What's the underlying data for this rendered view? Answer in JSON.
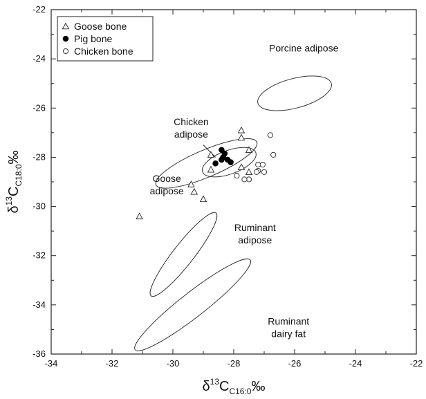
{
  "colors": {
    "axis": "#222222",
    "marker_fill": "#000000",
    "marker_open": "#ffffff",
    "ellipse": "#333333"
  },
  "chart_data": {
    "type": "scatter",
    "xlabel": {
      "prefix": "δ",
      "sup": "13",
      "main": "C",
      "sub": "C16:0",
      "unit": "‰"
    },
    "ylabel": {
      "prefix": "δ",
      "sup": "13",
      "main": "C",
      "sub": "C18:0",
      "unit": "‰"
    },
    "xlim": [
      -34,
      -22
    ],
    "ylim": [
      -36,
      -22
    ],
    "xticks": [
      -34,
      -32,
      -30,
      -28,
      -26,
      -24,
      -22
    ],
    "yticks": [
      -36,
      -34,
      -32,
      -30,
      -28,
      -26,
      -24,
      -22
    ],
    "xtick_labels": [
      "-34",
      "-32",
      "-30",
      "-28",
      "-26",
      "-24",
      "-22"
    ],
    "ytick_labels": [
      "-36",
      "-34",
      "-32",
      "-30",
      "-28",
      "-26",
      "-24",
      "-22"
    ],
    "legend": {
      "position": "top-left",
      "entries": [
        {
          "label": "Goose bone",
          "marker": "triangle-open"
        },
        {
          "label": "Pig bone",
          "marker": "circle-filled"
        },
        {
          "label": "Chicken bone",
          "marker": "circle-open"
        }
      ]
    },
    "series": [
      {
        "name": "Goose bone",
        "marker": "triangle-open",
        "points": [
          [
            -31.1,
            -30.4
          ],
          [
            -29.0,
            -29.7
          ],
          [
            -29.3,
            -29.4
          ],
          [
            -29.4,
            -29.1
          ],
          [
            -28.75,
            -28.5
          ],
          [
            -28.75,
            -27.9
          ],
          [
            -27.75,
            -26.9
          ],
          [
            -27.75,
            -27.2
          ],
          [
            -27.75,
            -28.4
          ],
          [
            -27.5,
            -27.7
          ],
          [
            -27.5,
            -28.6
          ]
        ]
      },
      {
        "name": "Pig bone",
        "marker": "circle-filled",
        "points": [
          [
            -28.4,
            -27.7
          ],
          [
            -28.3,
            -27.85
          ],
          [
            -28.35,
            -28.0
          ],
          [
            -28.2,
            -28.1
          ],
          [
            -28.1,
            -28.2
          ],
          [
            -28.4,
            -28.1
          ],
          [
            -28.6,
            -28.25
          ]
        ]
      },
      {
        "name": "Chicken bone",
        "marker": "circle-open",
        "points": [
          [
            -26.8,
            -27.1
          ],
          [
            -26.7,
            -27.9
          ],
          [
            -27.2,
            -28.3
          ],
          [
            -27.05,
            -28.3
          ],
          [
            -27.2,
            -28.55
          ],
          [
            -27.0,
            -28.6
          ],
          [
            -27.25,
            -28.6
          ],
          [
            -27.5,
            -28.9
          ],
          [
            -27.65,
            -28.9
          ],
          [
            -27.9,
            -28.75
          ]
        ]
      }
    ],
    "regions": [
      {
        "label_lines": [
          "Porcine adipose"
        ],
        "cx": -26.0,
        "cy": -25.4,
        "rx": 1.25,
        "ry": 0.6,
        "angle": 15,
        "label_x": -25.7,
        "label_y": -23.7,
        "anchor": "middle"
      },
      {
        "label_lines": [
          "Chicken",
          "adipose"
        ],
        "cx": -28.15,
        "cy": -28.2,
        "rx": 0.93,
        "ry": 0.48,
        "angle": 20,
        "label_x": -29.4,
        "label_y": -26.7,
        "anchor": "middle",
        "leader": [
          [
            -29.0,
            -27.5
          ],
          [
            -28.6,
            -28.0
          ]
        ]
      },
      {
        "label_lines": [
          "Goose",
          "adipose"
        ],
        "cx": -28.9,
        "cy": -28.25,
        "rx": 1.8,
        "ry": 0.55,
        "angle": 23,
        "label_x": -30.2,
        "label_y": -29.0,
        "anchor": "middle"
      },
      {
        "label_lines": [
          "Ruminant",
          "adipose"
        ],
        "cx": -29.65,
        "cy": -31.95,
        "rx": 1.73,
        "ry": 0.42,
        "angle": 52,
        "label_x": -27.3,
        "label_y": -31.0,
        "anchor": "middle"
      },
      {
        "label_lines": [
          "Ruminant",
          "dairy fat"
        ],
        "cx": -29.35,
        "cy": -34.0,
        "rx": 2.4,
        "ry": 0.5,
        "angle": 38,
        "label_x": -26.2,
        "label_y": -34.8,
        "anchor": "middle"
      }
    ]
  }
}
